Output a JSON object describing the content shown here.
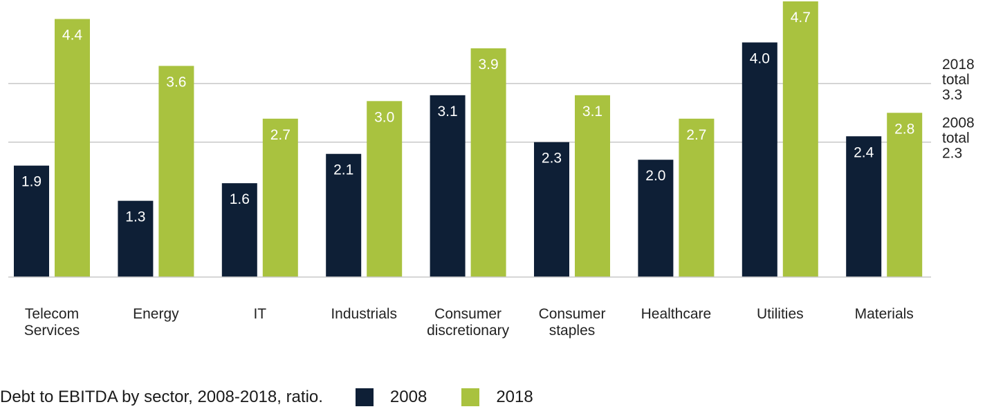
{
  "chart_data": {
    "type": "bar",
    "categories": [
      [
        "Telecom",
        "Services"
      ],
      [
        "Energy"
      ],
      [
        "IT"
      ],
      [
        "Industrials"
      ],
      [
        "Consumer",
        "discretionary"
      ],
      [
        "Consumer",
        "staples"
      ],
      [
        "Healthcare"
      ],
      [
        "Utilities"
      ],
      [
        "Materials"
      ]
    ],
    "series": [
      {
        "name": "2008",
        "color": "#0e1f36",
        "values": [
          1.9,
          1.3,
          1.6,
          2.1,
          3.1,
          2.3,
          2.0,
          4.0,
          2.4
        ]
      },
      {
        "name": "2018",
        "color": "#a9c23f",
        "values": [
          4.4,
          3.6,
          2.7,
          3.0,
          3.9,
          3.1,
          2.7,
          4.7,
          2.8
        ]
      }
    ],
    "reference_lines": [
      {
        "label_lines": [
          "2018",
          "total",
          "3.3"
        ],
        "value": 3.3
      },
      {
        "label_lines": [
          "2008",
          "total",
          "2.3"
        ],
        "value": 2.3
      }
    ],
    "ylim": [
      0,
      4.7
    ],
    "title": "Debt to EBITDA by sector, 2008-2018, ratio.",
    "legend_position": "bottom"
  },
  "legend": {
    "title": "Debt to EBITDA by sector, 2008-2018, ratio.",
    "items": [
      {
        "label": "2008",
        "color": "#0e1f36"
      },
      {
        "label": "2018",
        "color": "#a9c23f"
      }
    ]
  }
}
